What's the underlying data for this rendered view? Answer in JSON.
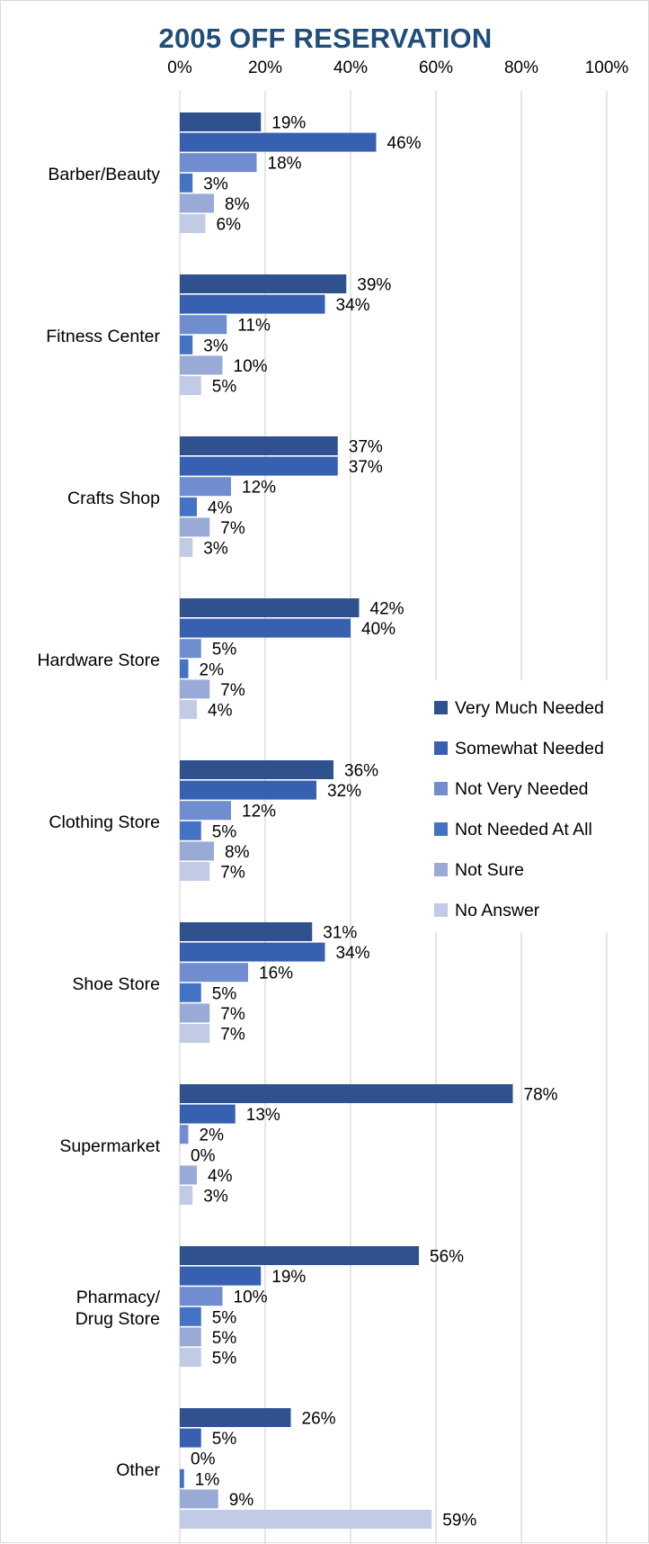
{
  "colors": {
    "title": "#1f4e79",
    "grid": "#d9d9d9",
    "text": "#000000",
    "series": [
      "#2f528f",
      "#3760b0",
      "#6f8dcf",
      "#4472c4",
      "#9aaad6",
      "#c1cbe6"
    ]
  },
  "chart_data": {
    "type": "bar",
    "orientation": "horizontal",
    "title": "2005 OFF RESERVATION",
    "xlim": [
      0,
      100
    ],
    "x_ticks": [
      "0%",
      "20%",
      "40%",
      "60%",
      "80%",
      "100%"
    ],
    "x_axis_position": "top",
    "grid": true,
    "legend_position": "right",
    "value_suffix": "%",
    "categories": [
      "Barber/Beauty",
      "Fitness Center",
      "Crafts Shop",
      "Hardware Store",
      "Clothing Store",
      "Shoe Store",
      "Supermarket",
      "Pharmacy/ Drug Store",
      "Other"
    ],
    "series": [
      {
        "name": "Very Much Needed",
        "values": [
          19,
          39,
          37,
          42,
          36,
          31,
          78,
          56,
          26
        ]
      },
      {
        "name": "Somewhat Needed",
        "values": [
          46,
          34,
          37,
          40,
          32,
          34,
          13,
          19,
          5
        ]
      },
      {
        "name": "Not Very Needed",
        "values": [
          18,
          11,
          12,
          5,
          12,
          16,
          2,
          10,
          0
        ]
      },
      {
        "name": "Not Needed At All",
        "values": [
          3,
          3,
          4,
          2,
          5,
          5,
          0,
          5,
          1
        ]
      },
      {
        "name": "Not Sure",
        "values": [
          8,
          10,
          7,
          7,
          8,
          7,
          4,
          5,
          9
        ]
      },
      {
        "name": "No Answer",
        "values": [
          6,
          5,
          3,
          4,
          7,
          7,
          3,
          5,
          59
        ]
      }
    ]
  }
}
